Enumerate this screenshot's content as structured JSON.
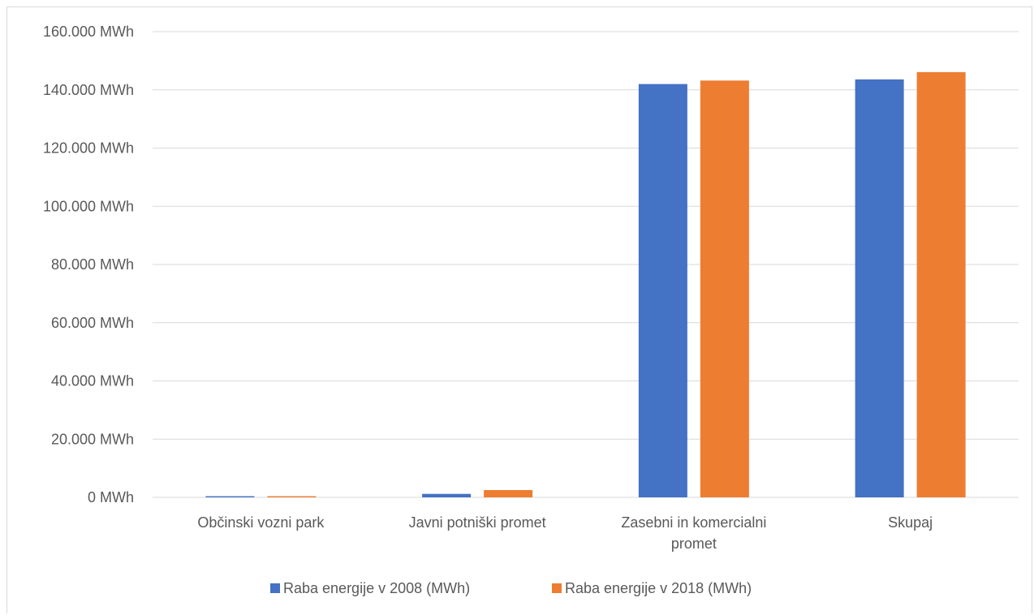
{
  "chart_data": {
    "type": "bar",
    "categories": [
      [
        "Občinski vozni park"
      ],
      [
        "Javni potniški promet"
      ],
      [
        "Zasebni in komercialni",
        "promet"
      ],
      [
        "Skupaj"
      ]
    ],
    "series": [
      {
        "name": "Raba energije v 2008 (MWh)",
        "color": "#4472c4",
        "values": [
          400,
          1200,
          142000,
          143600
        ]
      },
      {
        "name": "Raba energije v 2018 (MWh)",
        "color": "#ed7d31",
        "values": [
          400,
          2500,
          143200,
          146100
        ]
      }
    ],
    "y_ticks": [
      "0 MWh",
      "20.000 MWh",
      "40.000 MWh",
      "60.000 MWh",
      "80.000 MWh",
      "100.000 MWh",
      "120.000 MWh",
      "140.000 MWh",
      "160.000 MWh"
    ],
    "ylim": [
      0,
      160000
    ],
    "y_step": 20000,
    "grid": true,
    "legend_position": "bottom"
  }
}
